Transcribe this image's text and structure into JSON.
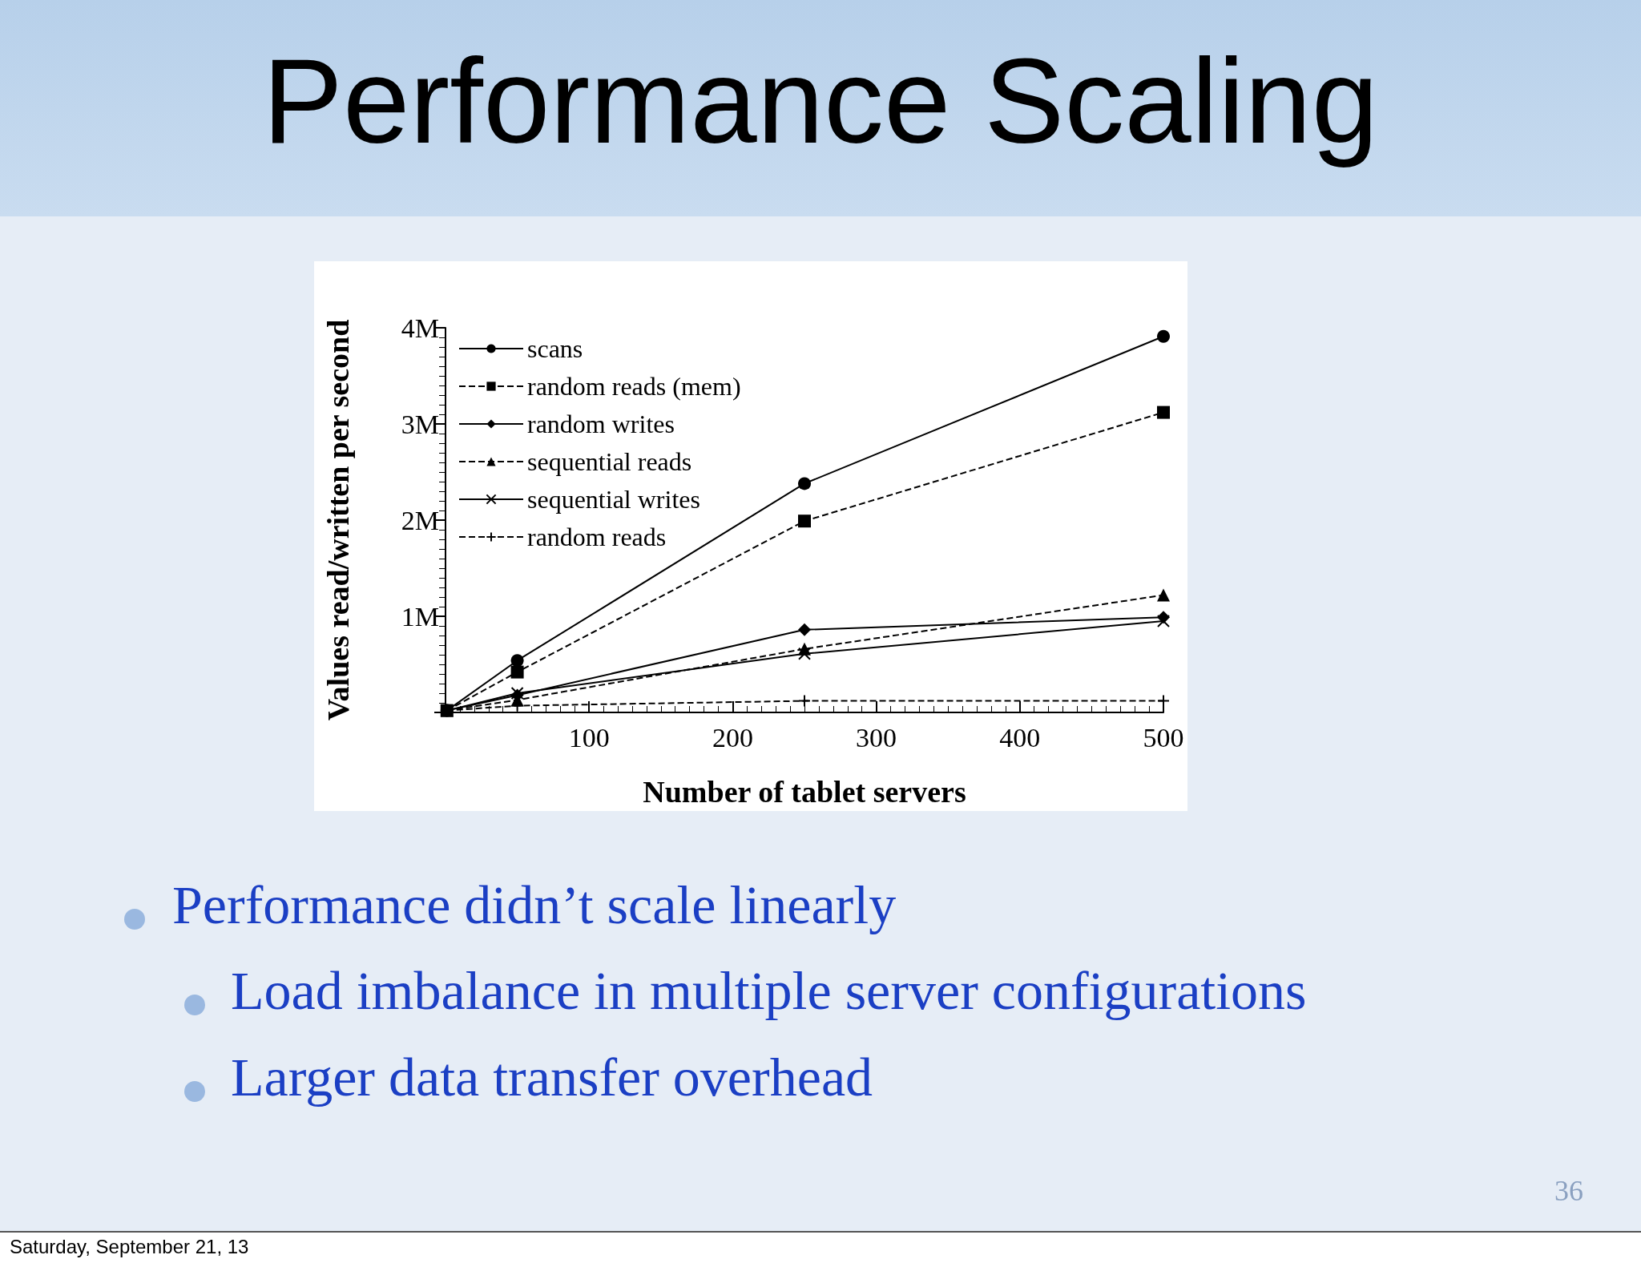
{
  "chart_data": {
    "type": "line",
    "title": "Performance Scaling",
    "xlabel": "Number of tablet servers",
    "ylabel": "Values read/written per second",
    "xlim": [
      0,
      500
    ],
    "xticks": [
      100,
      200,
      300,
      400,
      500
    ],
    "ylim": [
      0,
      4
    ],
    "yticks": [
      {
        "value": 0,
        "label": null
      },
      {
        "value": 1,
        "label": "1M"
      },
      {
        "value": 2,
        "label": "2M"
      },
      {
        "value": 3,
        "label": "3M"
      },
      {
        "value": 4,
        "label": "4M"
      }
    ],
    "x": [
      1,
      50,
      250,
      500
    ],
    "grid": false,
    "legend": "top left",
    "series": [
      {
        "name": "scans",
        "color": "#000000",
        "marker": "circle",
        "line_style": "solid",
        "values": [
          0.02,
          0.54,
          2.38,
          3.91
        ]
      },
      {
        "name": "random reads (mem)",
        "color": "#000000",
        "marker": "square",
        "line_style": "dashed",
        "values": [
          0.02,
          0.42,
          1.99,
          3.12
        ]
      },
      {
        "name": "random writes",
        "color": "#000000",
        "marker": "diamond",
        "line_style": "solid",
        "values": [
          0.02,
          0.18,
          0.86,
          0.99
        ]
      },
      {
        "name": "sequential reads",
        "color": "#000000",
        "marker": "triangle",
        "line_style": "dashed",
        "values": [
          0.02,
          0.13,
          0.66,
          1.22
        ]
      },
      {
        "name": "sequential writes",
        "color": "#000000",
        "marker": "x",
        "line_style": "solid",
        "values": [
          0.02,
          0.2,
          0.61,
          0.95
        ]
      },
      {
        "name": "random reads",
        "color": "#000000",
        "marker": "cross",
        "line_style": "dashed",
        "values": [
          0.02,
          0.07,
          0.12,
          0.12
        ]
      }
    ],
    "annotations": [
      "Performance didn’t scale linearly",
      "Load imbalance in multiple server configurations",
      "Larger data transfer overhead",
      "36",
      "Saturday, September 21, 13"
    ]
  }
}
